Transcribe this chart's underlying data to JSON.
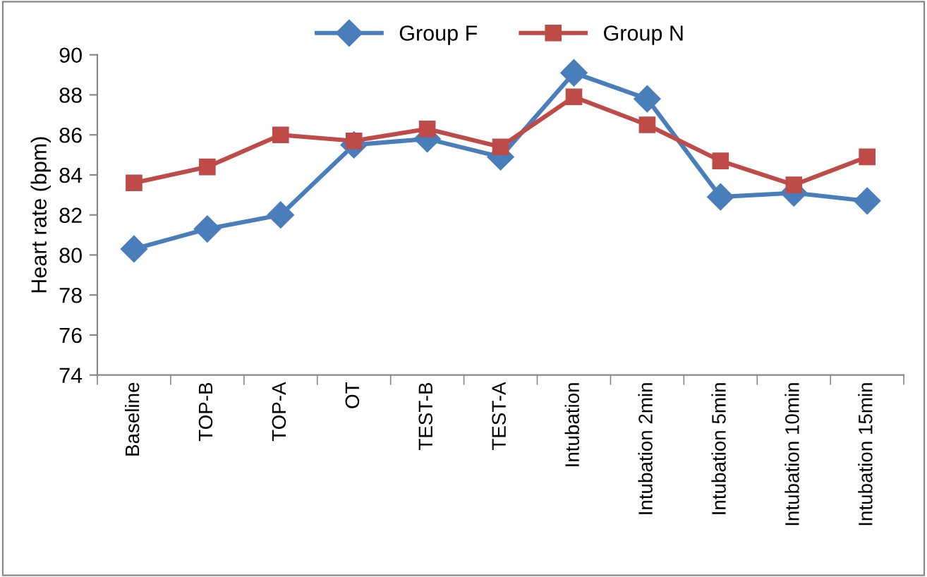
{
  "chart_data": {
    "type": "line",
    "ylabel": "Heart rate (bpm)",
    "categories": [
      "Baseline",
      "TOP-B",
      "TOP-A",
      "OT",
      "TEST-B",
      "TEST-A",
      "Intubation",
      "Intubation 2min",
      "Intubation 5min",
      "Intubation 10min",
      "Intubation 15min"
    ],
    "series": [
      {
        "name": "Group F",
        "color": "#4a7ebb",
        "marker": "diamond",
        "values": [
          80.3,
          81.3,
          82.0,
          85.5,
          85.8,
          84.9,
          89.1,
          87.8,
          82.9,
          83.1,
          82.7
        ]
      },
      {
        "name": "Group N",
        "color": "#be4b48",
        "marker": "square",
        "values": [
          83.6,
          84.4,
          86.0,
          85.7,
          86.3,
          85.4,
          87.9,
          86.5,
          84.7,
          83.5,
          84.9
        ]
      }
    ],
    "ylim": [
      74,
      90
    ],
    "yticks": [
      74,
      76,
      78,
      80,
      82,
      84,
      86,
      88,
      90
    ],
    "grid": false,
    "legend": "top"
  }
}
